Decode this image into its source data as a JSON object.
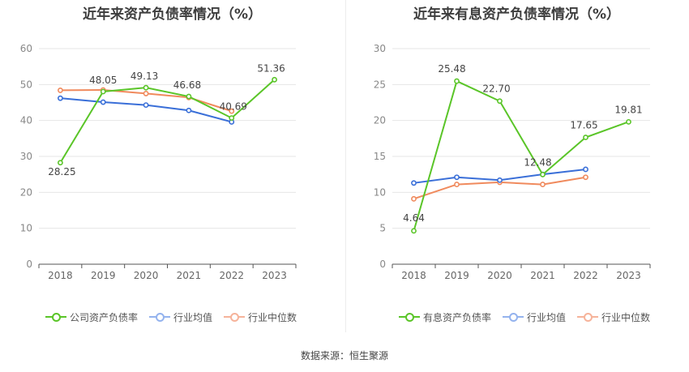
{
  "footer": {
    "source": "数据来源：恒生聚源"
  },
  "chart_data": [
    {
      "type": "line",
      "title": "近年来资产负债率情况（%）",
      "categories": [
        "2018",
        "2019",
        "2020",
        "2021",
        "2022",
        "2023"
      ],
      "ylim": [
        0,
        60
      ],
      "yticks": [
        0,
        10,
        20,
        30,
        40,
        50,
        60
      ],
      "grid": true,
      "legend_position": "bottom",
      "series": [
        {
          "name": "公司资产负债率",
          "color": "#5ac528",
          "values": [
            28.25,
            48.05,
            49.13,
            46.68,
            40.69,
            51.36
          ],
          "labels": [
            "28.25",
            "48.05",
            "49.13",
            "46.68",
            "40.69",
            "51.36"
          ]
        },
        {
          "name": "行业均值",
          "color": "#3a6fd8",
          "values": [
            46.2,
            45.1,
            44.3,
            42.8,
            39.6,
            null
          ]
        },
        {
          "name": "行业中位数",
          "color": "#f08a5d",
          "values": [
            48.4,
            48.5,
            47.5,
            46.4,
            42.6,
            null
          ]
        }
      ]
    },
    {
      "type": "line",
      "title": "近年来有息资产负债率情况（%）",
      "categories": [
        "2018",
        "2019",
        "2020",
        "2021",
        "2022",
        "2023"
      ],
      "ylim": [
        0,
        30
      ],
      "yticks": [
        0,
        5,
        10,
        15,
        20,
        25,
        30
      ],
      "grid": true,
      "legend_position": "bottom",
      "series": [
        {
          "name": "有息资产负债率",
          "color": "#5ac528",
          "values": [
            4.64,
            25.48,
            22.7,
            12.48,
            17.65,
            19.81
          ],
          "labels": [
            "4.64",
            "25.48",
            "22.70",
            "12.48",
            "17.65",
            "19.81"
          ]
        },
        {
          "name": "行业均值",
          "color": "#3a6fd8",
          "values": [
            11.3,
            12.1,
            11.7,
            12.5,
            13.2,
            null
          ]
        },
        {
          "name": "行业中位数",
          "color": "#f08a5d",
          "values": [
            9.1,
            11.1,
            11.4,
            11.1,
            12.1,
            null
          ]
        }
      ]
    }
  ]
}
